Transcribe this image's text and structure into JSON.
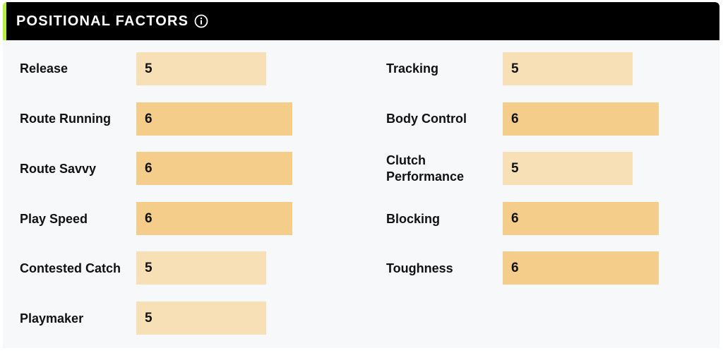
{
  "header": {
    "title": "POSITIONAL FACTORS",
    "info_icon": "info-circle-icon",
    "accent_color": "#b7ef3c",
    "background": "#000000"
  },
  "colors": {
    "level_5": "#f8e0b6",
    "level_6": "#f5cd8a"
  },
  "left_column": [
    {
      "label": "Release",
      "value": "5"
    },
    {
      "label": "Route Running",
      "value": "6"
    },
    {
      "label": "Route Savvy",
      "value": "6"
    },
    {
      "label": "Play Speed",
      "value": "6"
    },
    {
      "label": "Contested Catch",
      "value": "5"
    },
    {
      "label": "Playmaker",
      "value": "5"
    }
  ],
  "right_column": [
    {
      "label": "Tracking",
      "value": "5"
    },
    {
      "label": "Body Control",
      "value": "6"
    },
    {
      "label": "Clutch Performance",
      "value": "5"
    },
    {
      "label": "Blocking",
      "value": "6"
    },
    {
      "label": "Toughness",
      "value": "6"
    }
  ]
}
